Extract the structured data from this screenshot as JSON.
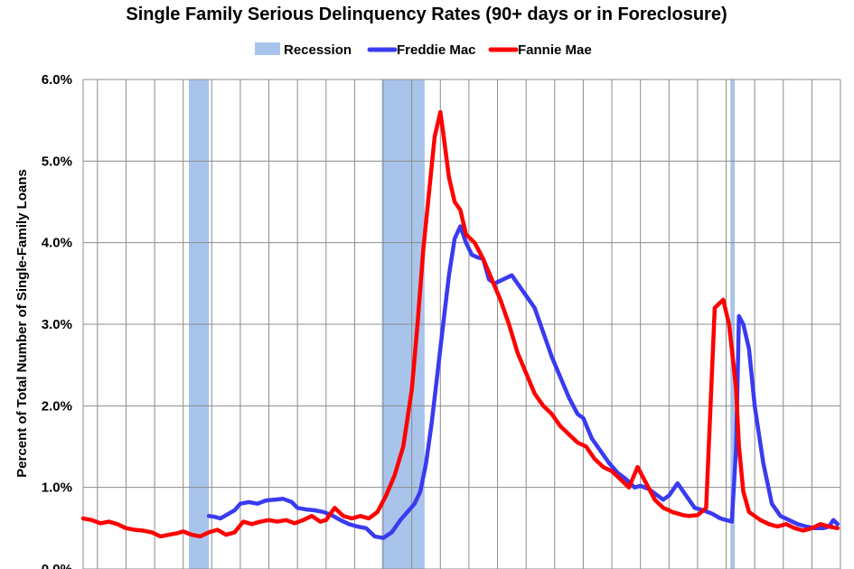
{
  "chart_data": {
    "type": "line",
    "title": "Single Family Serious Delinquency Rates (90+ days or in Foreclosure)",
    "ylabel": "Percent of Total Number of Single-Family Loans",
    "xlabel": "",
    "x_range_years": [
      1997.5,
      2024.0
    ],
    "ylim": [
      0,
      6
    ],
    "yticks": [
      "0.0%",
      "1.0%",
      "2.0%",
      "3.0%",
      "4.0%",
      "5.0%",
      "6.0%"
    ],
    "grid": true,
    "legend_placement": "top-center",
    "legend": [
      "Recession",
      "Freddie Mac",
      "Fannie Mae"
    ],
    "colors": {
      "recession": "#a9c4eb",
      "freddie": "#3a3af0",
      "fannie": "#ff0000",
      "grid": "#8c8c8c"
    },
    "recessions": [
      {
        "start": 2001.2,
        "end": 2001.9
      },
      {
        "start": 2007.95,
        "end": 2009.45
      },
      {
        "start": 2020.15,
        "end": 2020.3
      }
    ],
    "series": [
      {
        "name": "Freddie Mac",
        "x": [
          2001.9,
          2002.1,
          2002.3,
          2002.5,
          2002.8,
          2003.0,
          2003.3,
          2003.6,
          2003.9,
          2004.2,
          2004.5,
          2004.8,
          2005.0,
          2005.3,
          2005.6,
          2005.9,
          2006.2,
          2006.5,
          2006.8,
          2007.1,
          2007.4,
          2007.7,
          2008.0,
          2008.3,
          2008.6,
          2008.9,
          2009.1,
          2009.3,
          2009.5,
          2009.7,
          2009.9,
          2010.1,
          2010.3,
          2010.5,
          2010.7,
          2010.9,
          2011.1,
          2011.3,
          2011.5,
          2011.7,
          2011.9,
          2012.2,
          2012.5,
          2012.8,
          2013.0,
          2013.3,
          2013.6,
          2013.9,
          2014.2,
          2014.5,
          2014.8,
          2015.0,
          2015.3,
          2015.6,
          2015.9,
          2016.2,
          2016.5,
          2016.8,
          2017.0,
          2017.3,
          2017.6,
          2017.8,
          2018.0,
          2018.3,
          2018.6,
          2018.9,
          2019.2,
          2019.5,
          2019.8,
          2020.0,
          2020.2,
          2020.35,
          2020.45,
          2020.6,
          2020.8,
          2021.0,
          2021.3,
          2021.6,
          2021.9,
          2022.2,
          2022.5,
          2022.8,
          2023.1,
          2023.4,
          2023.6,
          2023.75,
          2023.9
        ],
        "values": [
          0.65,
          0.64,
          0.62,
          0.66,
          0.72,
          0.8,
          0.82,
          0.8,
          0.84,
          0.85,
          0.86,
          0.82,
          0.75,
          0.73,
          0.72,
          0.7,
          0.66,
          0.6,
          0.55,
          0.52,
          0.5,
          0.4,
          0.38,
          0.45,
          0.6,
          0.72,
          0.8,
          0.95,
          1.3,
          1.8,
          2.4,
          3.0,
          3.6,
          4.05,
          4.2,
          4.0,
          3.85,
          3.82,
          3.8,
          3.55,
          3.5,
          3.55,
          3.6,
          3.45,
          3.35,
          3.2,
          2.9,
          2.6,
          2.35,
          2.1,
          1.9,
          1.85,
          1.6,
          1.45,
          1.3,
          1.18,
          1.1,
          1.0,
          1.02,
          0.98,
          0.9,
          0.85,
          0.9,
          1.05,
          0.9,
          0.75,
          0.72,
          0.68,
          0.62,
          0.6,
          0.58,
          1.5,
          3.1,
          3.0,
          2.7,
          2.0,
          1.3,
          0.8,
          0.65,
          0.6,
          0.55,
          0.52,
          0.5,
          0.5,
          0.52,
          0.6,
          0.55
        ]
      },
      {
        "name": "Fannie Mae",
        "x": [
          1997.5,
          1997.8,
          1998.1,
          1998.4,
          1998.7,
          1999.0,
          1999.3,
          1999.6,
          1999.9,
          2000.2,
          2000.5,
          2000.8,
          2001.0,
          2001.3,
          2001.6,
          2001.9,
          2002.2,
          2002.5,
          2002.8,
          2003.1,
          2003.4,
          2003.7,
          2004.0,
          2004.3,
          2004.6,
          2004.9,
          2005.2,
          2005.5,
          2005.8,
          2006.0,
          2006.3,
          2006.6,
          2006.9,
          2007.2,
          2007.5,
          2007.8,
          2008.1,
          2008.4,
          2008.7,
          2009.0,
          2009.2,
          2009.4,
          2009.6,
          2009.8,
          2010.0,
          2010.1,
          2010.3,
          2010.5,
          2010.7,
          2010.9,
          2011.2,
          2011.5,
          2011.8,
          2012.1,
          2012.4,
          2012.7,
          2013.0,
          2013.3,
          2013.6,
          2013.9,
          2014.2,
          2014.5,
          2014.8,
          2015.1,
          2015.4,
          2015.7,
          2016.0,
          2016.3,
          2016.6,
          2016.9,
          2017.2,
          2017.5,
          2017.8,
          2018.0,
          2018.1,
          2018.3,
          2018.5,
          2018.7,
          2019.0,
          2019.3,
          2019.6,
          2019.9,
          2020.1,
          2020.2,
          2020.35,
          2020.45,
          2020.6,
          2020.8,
          2021.0,
          2021.2,
          2021.5,
          2021.8,
          2022.1,
          2022.4,
          2022.7,
          2023.0,
          2023.3,
          2023.6,
          2023.9
        ],
        "values": [
          0.62,
          0.6,
          0.56,
          0.58,
          0.55,
          0.5,
          0.48,
          0.47,
          0.45,
          0.4,
          0.42,
          0.44,
          0.46,
          0.42,
          0.4,
          0.45,
          0.48,
          0.42,
          0.45,
          0.58,
          0.55,
          0.58,
          0.6,
          0.58,
          0.6,
          0.56,
          0.6,
          0.65,
          0.58,
          0.6,
          0.75,
          0.65,
          0.62,
          0.65,
          0.62,
          0.7,
          0.9,
          1.15,
          1.5,
          2.2,
          3.0,
          3.9,
          4.6,
          5.3,
          5.6,
          5.35,
          4.8,
          4.5,
          4.4,
          4.1,
          4.0,
          3.8,
          3.55,
          3.3,
          3.0,
          2.65,
          2.4,
          2.15,
          2.0,
          1.9,
          1.75,
          1.65,
          1.55,
          1.5,
          1.35,
          1.25,
          1.2,
          1.1,
          1.0,
          1.25,
          1.05,
          0.85,
          0.75,
          0.72,
          0.7,
          0.68,
          0.66,
          0.65,
          0.66,
          0.75,
          3.2,
          3.3,
          3.0,
          2.7,
          2.2,
          1.5,
          0.95,
          0.7,
          0.65,
          0.6,
          0.55,
          0.52,
          0.55,
          0.5,
          0.47,
          0.5,
          0.55,
          0.52,
          0.5
        ]
      }
    ]
  }
}
